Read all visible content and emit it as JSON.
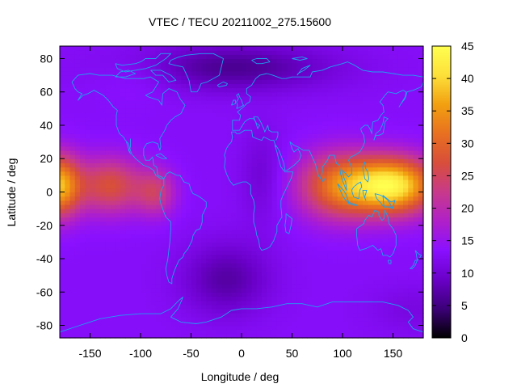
{
  "chart_data": {
    "type": "heatmap",
    "title": "VTEC / TECU 20211002_275.15600",
    "xlabel": "Longitude / deg",
    "ylabel": "Latitude / deg",
    "xlim": [
      -180,
      180
    ],
    "ylim": [
      -87.5,
      87.5
    ],
    "xticks": [
      -150,
      -100,
      -50,
      0,
      50,
      100,
      150
    ],
    "yticks": [
      -80,
      -60,
      -40,
      -20,
      0,
      20,
      40,
      60,
      80
    ],
    "grid": false,
    "colorbar": {
      "range": [
        0,
        45
      ],
      "ticks": [
        0,
        5,
        10,
        15,
        20,
        25,
        30,
        35,
        40,
        45
      ],
      "colormap": [
        "#000000",
        "#3c0078",
        "#6a00c8",
        "#8a10ff",
        "#b020c8",
        "#c83a8a",
        "#d84e3a",
        "#e87020",
        "#f2a010",
        "#fde03a",
        "#ffff50"
      ],
      "placement": "right"
    },
    "grid_resolution_deg": {
      "lon": 5,
      "lat": 2.5
    },
    "field_description_values": {
      "background_tecu": 13,
      "polar_north_minimum_tecu": 6,
      "south_atlantic_minimum_tecu": 7,
      "eastern_hemisphere_peak_tecu": 42,
      "western_pacific_peak_tecu": 38
    },
    "overlay": "coastlines"
  }
}
